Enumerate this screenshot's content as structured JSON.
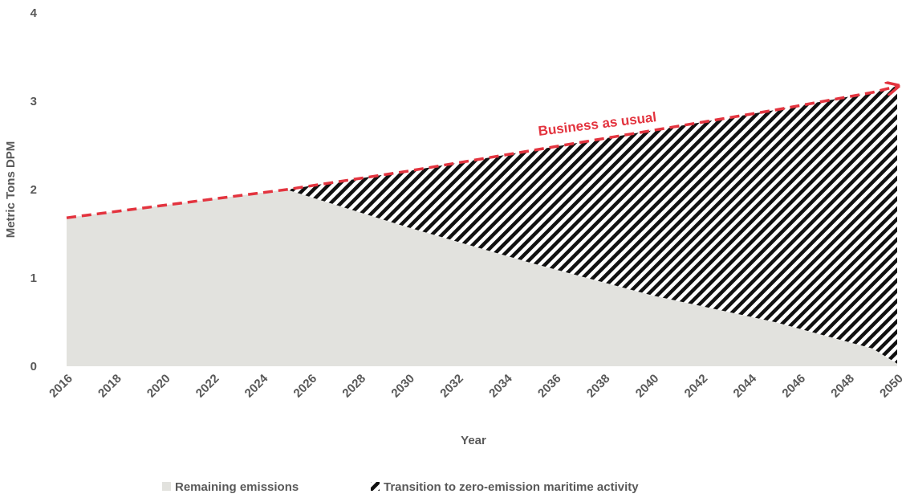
{
  "chart_data": {
    "type": "stacked_area",
    "x_label": "Year",
    "y_label": "Metric Tons DPM",
    "x": [
      2016,
      2025,
      2030,
      2035,
      2040,
      2045,
      2049,
      2050
    ],
    "series": [
      {
        "name": "Remaining emissions",
        "color": "#e2e2de",
        "values": [
          1.68,
          2.0,
          1.57,
          1.17,
          0.8,
          0.5,
          0.2,
          0.03
        ]
      },
      {
        "name": "Transition to zero-emission maritime activity",
        "color": "#111111",
        "pattern": "diagonal-hatch",
        "values": [
          0,
          0,
          0.64,
          1.27,
          1.87,
          2.4,
          2.9,
          3.14
        ]
      }
    ],
    "reference_line": {
      "label": "Business as usual",
      "color": "#e3343f",
      "style": "dashed",
      "values": [
        1.68,
        2.0,
        2.21,
        2.44,
        2.67,
        2.9,
        3.1,
        3.17
      ]
    },
    "xlim": [
      2016,
      2050
    ],
    "xticks": [
      2016,
      2018,
      2020,
      2022,
      2024,
      2026,
      2028,
      2030,
      2032,
      2034,
      2036,
      2038,
      2040,
      2042,
      2044,
      2046,
      2048,
      2050
    ],
    "ylim": [
      0,
      4
    ],
    "yticks": [
      0,
      1,
      2,
      3,
      4
    ],
    "grid": false,
    "legend": "bottom"
  }
}
